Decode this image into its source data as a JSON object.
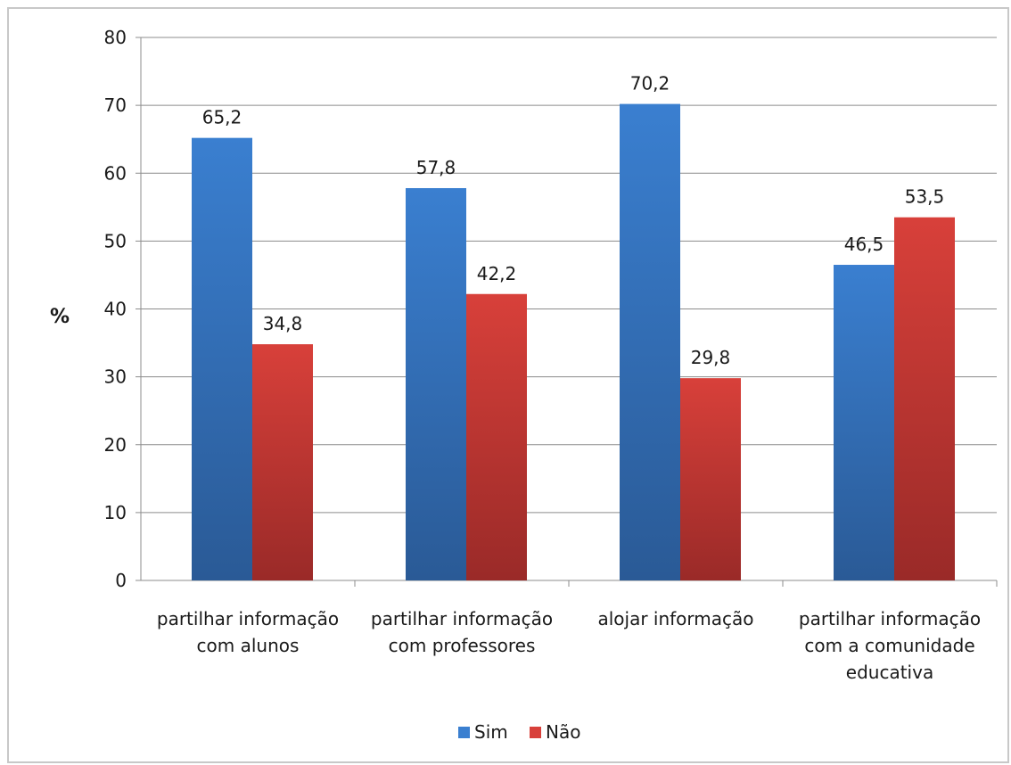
{
  "chart_data": {
    "type": "bar",
    "title": "",
    "xlabel": "",
    "ylabel": "%",
    "ylim": [
      0,
      80
    ],
    "yticks": [
      0,
      10,
      20,
      30,
      40,
      50,
      60,
      70,
      80
    ],
    "grid": true,
    "legend": "bottom",
    "categories": [
      [
        "partilhar informação",
        "com alunos"
      ],
      [
        "partilhar informação",
        "com professores"
      ],
      [
        "alojar informação"
      ],
      [
        "partilhar informação",
        "com a comunidade",
        "educativa"
      ]
    ],
    "series": [
      {
        "name": "Sim",
        "color_top": "#3a7fd0",
        "color_bottom": "#2a5a96",
        "values": [
          65.2,
          57.8,
          70.2,
          46.5
        ],
        "labels": [
          "65,2",
          "57,8",
          "70,2",
          "46,5"
        ]
      },
      {
        "name": "Não",
        "color_top": "#d8403a",
        "color_bottom": "#9a2a28",
        "values": [
          34.8,
          42.2,
          29.8,
          53.5
        ],
        "labels": [
          "34,8",
          "42,2",
          "29,8",
          "53,5"
        ]
      }
    ]
  }
}
